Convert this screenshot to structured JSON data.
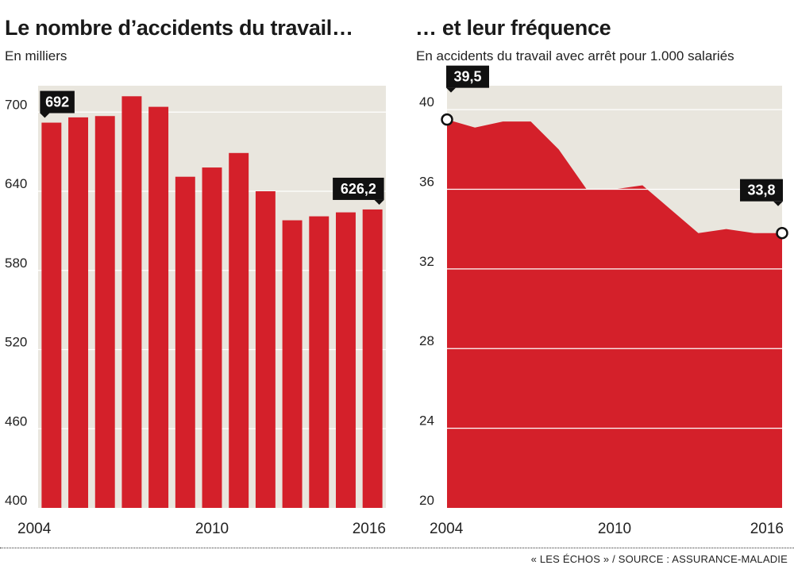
{
  "chart_data": [
    {
      "type": "bar",
      "title": "Le nombre d’accidents du travail…",
      "subtitle": "En milliers",
      "categories": [
        "2004",
        "2005",
        "2006",
        "2007",
        "2008",
        "2009",
        "2010",
        "2011",
        "2012",
        "2013",
        "2014",
        "2015",
        "2016"
      ],
      "values": [
        692,
        696,
        697,
        712,
        704,
        651,
        658,
        669,
        640,
        618,
        621,
        624,
        626.2
      ],
      "ylim": [
        400,
        720
      ],
      "yticks": [
        400,
        460,
        520,
        580,
        640,
        700
      ],
      "xtick_labels": [
        "2004",
        "2010",
        "2016"
      ],
      "callouts": [
        {
          "index": 0,
          "label": "692"
        },
        {
          "index": 12,
          "label": "626,2"
        }
      ],
      "grid": true,
      "colors": {
        "bar": "#d4202a",
        "plot_bg": "#e9e6de",
        "grid": "#ffffff",
        "callout_bg": "#111111",
        "callout_text": "#ffffff"
      }
    },
    {
      "type": "area",
      "title": "… et leur fréquence",
      "subtitle": "En accidents du travail avec arrêt pour 1.000 salariés",
      "x": [
        2004,
        2005,
        2006,
        2007,
        2008,
        2009,
        2010,
        2011,
        2012,
        2013,
        2014,
        2015,
        2016
      ],
      "values": [
        39.5,
        39.1,
        39.4,
        39.4,
        38.0,
        36.0,
        36.0,
        36.2,
        35.0,
        33.8,
        34.0,
        33.8,
        33.8
      ],
      "ylim": [
        20,
        41.2
      ],
      "yticks": [
        20,
        24,
        28,
        32,
        36,
        40
      ],
      "xtick_labels": [
        "2004",
        "2010",
        "2016"
      ],
      "callouts": [
        {
          "index": 0,
          "label": "39,5"
        },
        {
          "index": 12,
          "label": "33,8"
        }
      ],
      "grid": true,
      "colors": {
        "area": "#d4202a",
        "plot_bg": "#e9e6de",
        "grid": "#ffffff",
        "callout_bg": "#111111",
        "callout_text": "#ffffff"
      }
    }
  ],
  "footer": {
    "source": "« LES ÉCHOS » / SOURCE : ASSURANCE-MALADIE"
  }
}
